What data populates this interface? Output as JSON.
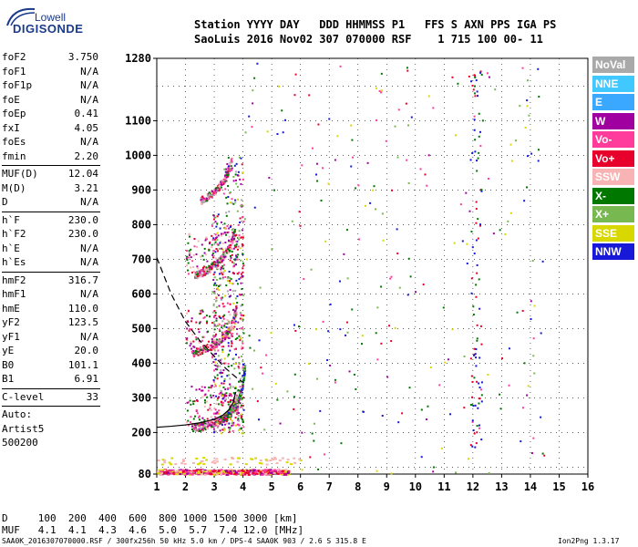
{
  "logo": {
    "line1": "Lowell",
    "line2": "DIGISONDE"
  },
  "header": {
    "row1": "Station YYYY DAY   DDD HHMMSS P1   FFS S AXN PPS IGA PS",
    "row2": "SaoLuis 2016 Nov02 307 070000 RSF    1 715 100 00- 11"
  },
  "parameters": {
    "group1": [
      {
        "k": "foF2",
        "v": "3.750"
      },
      {
        "k": "foF1",
        "v": "N/A"
      },
      {
        "k": "foF1p",
        "v": "N/A"
      },
      {
        "k": "foE",
        "v": "N/A"
      },
      {
        "k": "foEp",
        "v": "0.41"
      },
      {
        "k": "fxI",
        "v": "4.05"
      },
      {
        "k": "foEs",
        "v": "N/A"
      },
      {
        "k": "fmin",
        "v": "2.20"
      }
    ],
    "group2": [
      {
        "k": "MUF(D)",
        "v": "12.04"
      },
      {
        "k": "M(D)",
        "v": "3.21"
      },
      {
        "k": "D",
        "v": "N/A"
      }
    ],
    "group3": [
      {
        "k": "h`F",
        "v": "230.0"
      },
      {
        "k": "h`F2",
        "v": "230.0"
      },
      {
        "k": "h`E",
        "v": "N/A"
      },
      {
        "k": "h`Es",
        "v": "N/A"
      }
    ],
    "group4": [
      {
        "k": "hmF2",
        "v": "316.7"
      },
      {
        "k": "hmF1",
        "v": "N/A"
      },
      {
        "k": "hmE",
        "v": "110.0"
      },
      {
        "k": "yF2",
        "v": "123.5"
      },
      {
        "k": "yF1",
        "v": "N/A"
      },
      {
        "k": "yE",
        "v": "20.0"
      },
      {
        "k": "B0",
        "v": "101.1"
      },
      {
        "k": "B1",
        "v": "6.91"
      }
    ],
    "clevel": {
      "k": "C-level",
      "v": "33"
    },
    "auto": [
      "Auto:",
      "Artist5",
      "500200"
    ]
  },
  "legend": [
    {
      "label": "NoVal",
      "color": "#a9a9a9"
    },
    {
      "label": "NNE",
      "color": "#40c8ff"
    },
    {
      "label": "E",
      "color": "#3aa8ff"
    },
    {
      "label": "W",
      "color": "#a000a0"
    },
    {
      "label": "Vo-",
      "color": "#ff3c9c"
    },
    {
      "label": "Vo+",
      "color": "#e8002c"
    },
    {
      "label": "SSW",
      "color": "#f8b4b4"
    },
    {
      "label": "X-",
      "color": "#007800"
    },
    {
      "label": "X+",
      "color": "#78b850"
    },
    {
      "label": "SSE",
      "color": "#d8d800"
    },
    {
      "label": "NNW",
      "color": "#1818d8"
    }
  ],
  "muf_table": {
    "d_row": "D     100  200  400  600  800 1000 1500 3000 [km]",
    "muf_row": "MUF   4.1  4.1  4.3  4.6  5.0  5.7  7.4 12.0 [MHz]"
  },
  "footer": {
    "left": "SAA0K_2016307070000.RSF / 300fx256h 50 kHz 5.0 km / DPS-4 SAA0K 903 / 2.6 S 315.8 E",
    "right": "Ion2Png 1.3.17"
  },
  "chart_data": {
    "type": "scatter",
    "title": "",
    "xlabel": "",
    "ylabel": "",
    "xlim": [
      1,
      16
    ],
    "ylim": [
      80,
      1280
    ],
    "x_ticks": [
      1,
      2,
      3,
      4,
      5,
      6,
      7,
      8,
      9,
      10,
      11,
      12,
      13,
      14,
      15,
      16
    ],
    "y_ticks": [
      80,
      200,
      300,
      400,
      500,
      600,
      700,
      800,
      900,
      1000,
      1100,
      1280
    ],
    "profile_curve": [
      [
        1.0,
        215
      ],
      [
        1.5,
        218
      ],
      [
        2.0,
        222
      ],
      [
        2.5,
        228
      ],
      [
        3.0,
        238
      ],
      [
        3.3,
        250
      ],
      [
        3.5,
        265
      ],
      [
        3.65,
        285
      ],
      [
        3.75,
        317
      ]
    ],
    "muf_dashed_curve": [
      [
        1.0,
        705
      ],
      [
        1.5,
        600
      ],
      [
        2.0,
        520
      ],
      [
        2.5,
        465
      ],
      [
        3.0,
        420
      ],
      [
        3.4,
        385
      ],
      [
        3.75,
        360
      ],
      [
        4.0,
        345
      ]
    ],
    "traces": [
      {
        "name": "F trace o",
        "points": [
          [
            2.2,
            215
          ],
          [
            2.5,
            218
          ],
          [
            2.8,
            224
          ],
          [
            3.1,
            233
          ],
          [
            3.4,
            248
          ],
          [
            3.6,
            268
          ],
          [
            3.75,
            300
          ]
        ]
      },
      {
        "name": "F trace 2nd hop",
        "points": [
          [
            2.2,
            430
          ],
          [
            2.5,
            438
          ],
          [
            2.8,
            448
          ],
          [
            3.1,
            462
          ],
          [
            3.4,
            485
          ],
          [
            3.6,
            515
          ],
          [
            3.75,
            560
          ]
        ]
      },
      {
        "name": "F trace 3rd hop",
        "points": [
          [
            2.3,
            655
          ],
          [
            2.6,
            665
          ],
          [
            2.9,
            680
          ],
          [
            3.2,
            700
          ],
          [
            3.5,
            735
          ],
          [
            3.7,
            780
          ]
        ]
      },
      {
        "name": "F trace 4th hop",
        "points": [
          [
            2.5,
            870
          ],
          [
            2.8,
            885
          ],
          [
            3.1,
            905
          ],
          [
            3.4,
            940
          ],
          [
            3.6,
            990
          ]
        ]
      },
      {
        "name": "X trace",
        "points": [
          [
            3.3,
            240
          ],
          [
            3.6,
            262
          ],
          [
            3.8,
            290
          ],
          [
            3.95,
            330
          ],
          [
            4.05,
            390
          ]
        ]
      }
    ],
    "bottom_band": {
      "y_range": [
        80,
        95
      ],
      "x_range": [
        1.0,
        5.6
      ]
    }
  }
}
